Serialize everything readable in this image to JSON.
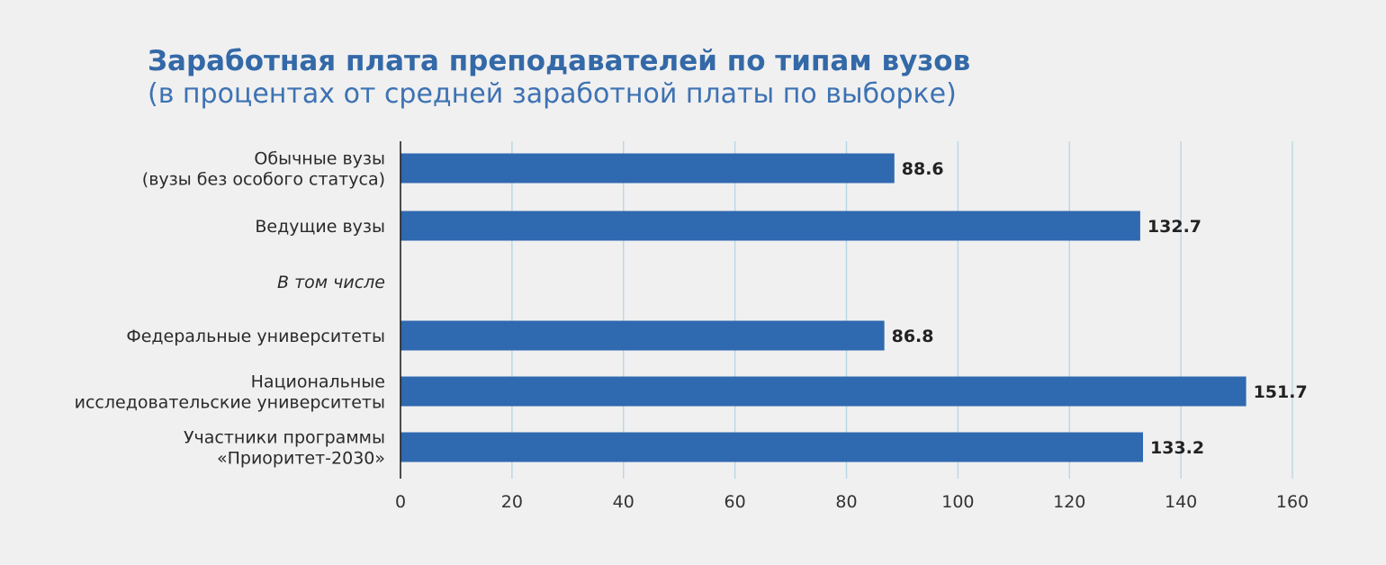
{
  "chart_data": {
    "type": "bar",
    "orientation": "horizontal",
    "title": "Заработная плата преподавателей по типам вузов",
    "subtitle": "(в процентах от средней заработной платы по выборке)",
    "xlabel": "",
    "ylabel": "",
    "xlim": [
      0,
      160
    ],
    "x_ticks": [
      "0",
      "20",
      "40",
      "60",
      "80",
      "100",
      "120",
      "140",
      "160"
    ],
    "grid": "vertical",
    "categories": [
      {
        "lines": [
          "Обычные вузы",
          "(вузы без особого статуса)"
        ],
        "value": 88.6,
        "value_label": "88.6"
      },
      {
        "lines": [
          "Ведущие вузы"
        ],
        "value": 132.7,
        "value_label": "132.7"
      },
      {
        "lines": [
          "В том числе"
        ],
        "value": null,
        "value_label": "",
        "italic": true
      },
      {
        "lines": [
          "Федеральные университеты"
        ],
        "value": 86.8,
        "value_label": "86.8"
      },
      {
        "lines": [
          "Национальные",
          "исследовательские университеты"
        ],
        "value": 151.7,
        "value_label": "151.7"
      },
      {
        "lines": [
          "Участники программы",
          "«Приоритет-2030»"
        ],
        "value": 133.2,
        "value_label": "133.2"
      }
    ],
    "colors": {
      "bar": "#2f69af",
      "grid": "#b9d6e6",
      "axis": "#222222",
      "title": "#3469a8"
    }
  }
}
